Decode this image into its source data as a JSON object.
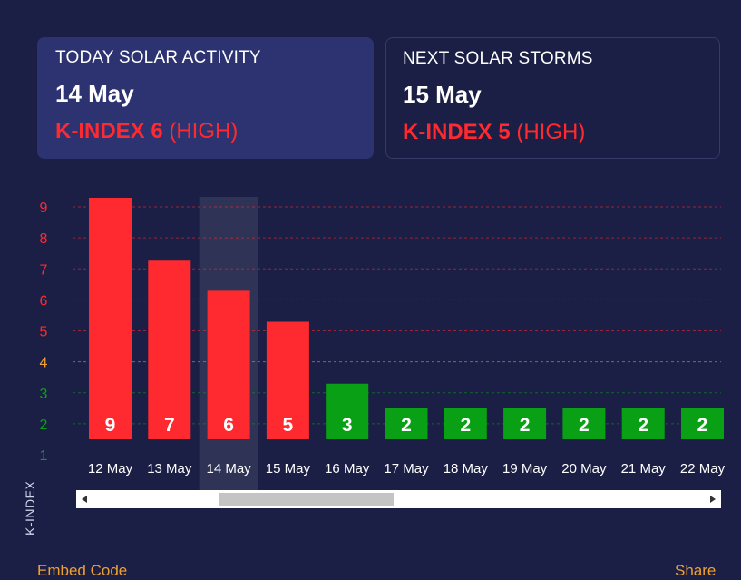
{
  "today_card": {
    "title": "TODAY SOLAR ACTIVITY",
    "date": "14 May",
    "k_label": "K-INDEX 6",
    "level": "(HIGH)"
  },
  "next_card": {
    "title": "NEXT SOLAR STORMS",
    "date": "15 May",
    "k_label": "K-INDEX 5",
    "level": "(HIGH)"
  },
  "colors": {
    "high": "#ff2a2f",
    "moderate": "#f0a030",
    "low": "#0aa015",
    "background": "#1b1f45",
    "card_active": "#2d3370"
  },
  "chart_data": {
    "type": "bar",
    "categories": [
      "12 May",
      "13 May",
      "14 May",
      "15 May",
      "16 May",
      "17 May",
      "18 May",
      "19 May",
      "20 May",
      "21 May",
      "22 May"
    ],
    "values": [
      9,
      7,
      6,
      5,
      3,
      2,
      2,
      2,
      2,
      2,
      2
    ],
    "ylabel": "K-INDEX",
    "yticks": [
      1,
      2,
      3,
      4,
      5,
      6,
      7,
      8,
      9
    ],
    "ylim": [
      1,
      9
    ],
    "grid": true,
    "highlighted_category": "14 May"
  },
  "footer": {
    "embed_label": "Embed Code",
    "share_label": "Share"
  }
}
